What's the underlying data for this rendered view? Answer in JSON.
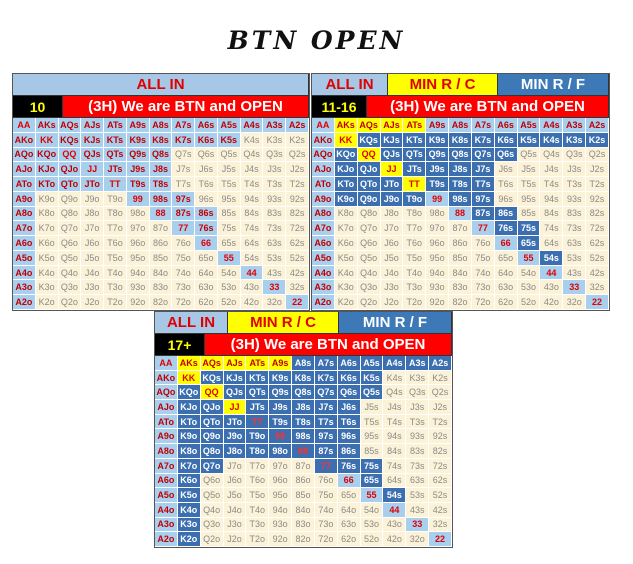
{
  "title": "BTN OPEN",
  "ranks": [
    "A",
    "K",
    "Q",
    "J",
    "T",
    "9",
    "8",
    "7",
    "6",
    "5",
    "4",
    "3",
    "2"
  ],
  "panel1": {
    "hdr_allin": "ALL IN",
    "label": "10",
    "situation": "(3H) We are BTN and OPEN",
    "rows": [
      "AAAAAAAAAAAAA",
      "AAAAAAAAAANNN",
      "AAAAAAANNNNNN",
      "AAAAAAANNNNNN",
      "AAAAAAANNNNNN",
      "ANNNNAAANNNNN",
      "ANNNNNAAANNNN",
      "ANNNNNNAANNNN",
      "ANNNNNNNANNNN",
      "ANNNNNNNNANNN",
      "ANNNNNNNNNANN",
      "ANNNNNNNNNNAN",
      "ANNNNNNNNNNNA"
    ]
  },
  "panel2": {
    "hdr_allin": "ALL IN",
    "hdr_minrc": "MIN R / C",
    "hdr_minrf": "MIN R / F",
    "label": "11-16",
    "situation": "(3H) We are BTN and OPEN",
    "rows": [
      "ACCCCAAAAAAAA",
      "ACFFFFFFFFFFF",
      "AFCFFFFFFNNNN",
      "AFFCFFFFNNNNN",
      "AFFFCFFFNNNNN",
      "AFFFFAFFNNNNN",
      "ANNNNNAFFNNNN",
      "ANNNNNNAFFNNN",
      "ANNNNNNNAFNNN",
      "ANNNNNNNNAFNN",
      "ANNNNNNNNNANN",
      "ANNNNNNNNNNAN",
      "ANNNNNNNNNNNA"
    ]
  },
  "panel3": {
    "hdr_allin": "ALL IN",
    "hdr_minrc": "MIN R / C",
    "hdr_minrf": "MIN R / F",
    "label": "17+",
    "situation": "(3H) We are BTN and OPEN",
    "rows": [
      "ACCCCCFFFFFFF",
      "ACFFFFFFFFNNN",
      "AFCFFFFFFFNNN",
      "AFFCFFFFFNNNN",
      "AFFFFFFFFNNNN",
      "AFFFFFFFFNNNN",
      "AFFFFFFFFNNNN",
      "AFFNNNNFFFNNN",
      "AFNNNNNNAFNNN",
      "AFNNNNNNNAFNN",
      "AFNNNNNNNNANN",
      "AFNNNNNNNNNAN",
      "AFNNNNNNNNNNA"
    ]
  }
}
